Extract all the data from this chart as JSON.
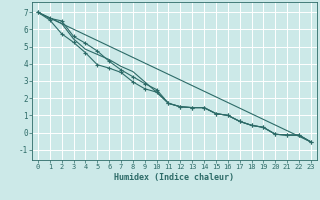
{
  "xlabel": "Humidex (Indice chaleur)",
  "bg_color": "#cce9e8",
  "grid_color": "#ffffff",
  "line_color": "#2d6b68",
  "xlim": [
    -0.5,
    23.5
  ],
  "ylim": [
    -1.6,
    7.6
  ],
  "xticks": [
    0,
    1,
    2,
    3,
    4,
    5,
    6,
    7,
    8,
    9,
    10,
    11,
    12,
    13,
    14,
    15,
    16,
    17,
    18,
    19,
    20,
    21,
    22,
    23
  ],
  "yticks": [
    -1,
    0,
    1,
    2,
    3,
    4,
    5,
    6,
    7
  ],
  "line1_x": [
    0,
    1,
    2,
    3,
    4,
    5,
    6,
    7,
    8,
    9,
    10,
    11,
    12,
    13,
    14,
    15,
    16,
    17,
    18,
    19,
    20,
    21,
    22,
    23
  ],
  "line1_y": [
    7.0,
    6.65,
    6.5,
    5.6,
    5.2,
    4.75,
    4.15,
    3.65,
    3.25,
    2.85,
    2.5,
    1.7,
    1.5,
    1.45,
    1.45,
    1.1,
    1.0,
    0.65,
    0.42,
    0.3,
    -0.1,
    -0.15,
    -0.15,
    -0.55
  ],
  "line2_x": [
    0,
    1,
    2,
    3,
    4,
    5,
    6,
    7,
    8,
    9,
    10,
    11,
    12,
    13,
    14,
    15,
    16,
    17,
    18,
    19,
    20,
    21,
    22,
    23
  ],
  "line2_y": [
    7.0,
    6.55,
    5.75,
    5.25,
    4.65,
    3.95,
    3.75,
    3.5,
    2.95,
    2.55,
    2.35,
    1.7,
    1.5,
    1.45,
    1.45,
    1.1,
    1.0,
    0.65,
    0.42,
    0.3,
    -0.1,
    -0.15,
    -0.15,
    -0.55
  ],
  "line3_x": [
    0,
    2,
    3,
    4,
    5,
    6,
    7,
    8,
    9,
    10,
    11,
    12,
    13,
    14,
    15,
    16,
    17,
    18,
    19,
    20,
    21,
    22,
    23
  ],
  "line3_y": [
    7.0,
    6.35,
    5.45,
    4.85,
    4.55,
    4.25,
    3.85,
    3.55,
    2.95,
    2.35,
    1.7,
    1.5,
    1.45,
    1.45,
    1.1,
    1.0,
    0.65,
    0.42,
    0.3,
    -0.1,
    -0.15,
    -0.15,
    -0.55
  ],
  "line4_x": [
    0,
    23
  ],
  "line4_y": [
    7.0,
    -0.55
  ],
  "xlabel_fontsize": 6.0,
  "tick_fontsize": 5.0
}
